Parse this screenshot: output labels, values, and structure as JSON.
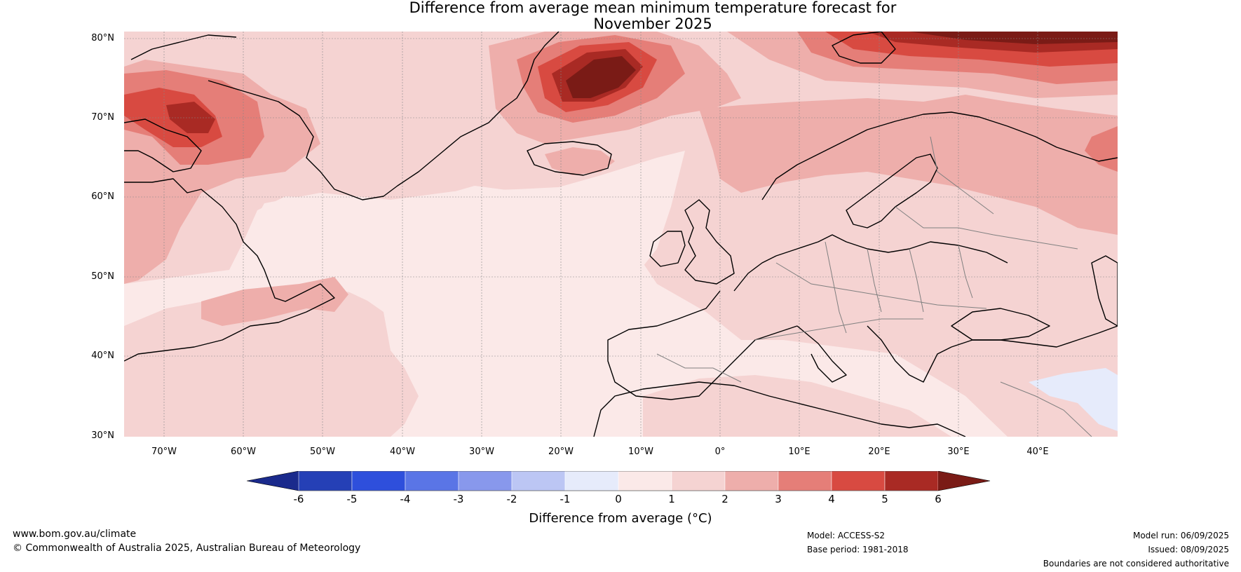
{
  "title_line1": "Difference from average mean minimum temperature forecast for",
  "title_line2": "November 2025",
  "map": {
    "lat_labels": [
      "80°N",
      "70°N",
      "60°N",
      "50°N",
      "40°N",
      "30°N"
    ],
    "lon_labels": [
      "70°W",
      "60°W",
      "50°W",
      "40°W",
      "30°W",
      "20°W",
      "10°W",
      "0°",
      "10°E",
      "20°E",
      "30°E",
      "40°E"
    ],
    "extent": {
      "lon_min": -75,
      "lon_max": 50,
      "lat_min": 30,
      "lat_max": 81
    },
    "projection": "PlateCarree",
    "gridlines": true,
    "land_color": "none",
    "coastline_color": "#000000",
    "border_color": "#808080"
  },
  "colorbar": {
    "title": "Difference from average (°C)",
    "tick_labels": [
      "-6",
      "-5",
      "-4",
      "-3",
      "-2",
      "-1",
      "0",
      "1",
      "2",
      "3",
      "4",
      "5",
      "6"
    ],
    "colors": [
      "#1a2a8c",
      "#2540b6",
      "#2e4fdc",
      "#5a75e6",
      "#8898ec",
      "#bcc6f4",
      "#e6ebfb",
      "#fbe9e8",
      "#f5d3d2",
      "#eeaeab",
      "#e57e78",
      "#d84a41",
      "#a92a24",
      "#7a1b16"
    ],
    "extend": "both"
  },
  "footer": {
    "url": "www.bom.gov.au/climate",
    "copyright": "© Commonwealth of Australia 2025, Australian Bureau of Meteorology",
    "model": "Model: ACCESS-S2",
    "base_period": "Base period: 1981-2018",
    "model_run": "Model run: 06/09/2025",
    "issued": "Issued: 08/09/2025",
    "disclaimer": "Boundaries are not considered authoritative"
  }
}
